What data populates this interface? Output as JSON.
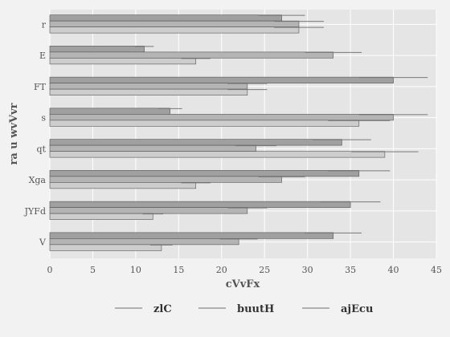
{
  "chart_data": {
    "type": "bar",
    "orientation": "horizontal",
    "xlabel": "cVvFx",
    "ylabel": "ra u wvVvr",
    "xlim": [
      0,
      45
    ],
    "xticks": [
      0,
      5,
      10,
      15,
      20,
      25,
      30,
      35,
      40,
      45
    ],
    "grid": true,
    "legend_position": "bottom",
    "categories": [
      "r",
      "E",
      "FT",
      "s",
      "qt",
      "Xga",
      "JYFd",
      "V"
    ],
    "series": [
      {
        "name": "zlC",
        "color": "#a0a0a0",
        "values": [
          27,
          11,
          40,
          14,
          34,
          36,
          35,
          33
        ],
        "errors": [
          2.7,
          1.1,
          4.0,
          1.4,
          3.4,
          3.6,
          3.5,
          3.3
        ]
      },
      {
        "name": "buutH",
        "color": "#b4b4b4",
        "values": [
          29,
          33,
          23,
          40,
          24,
          27,
          23,
          22
        ],
        "errors": [
          2.9,
          3.3,
          2.3,
          4.0,
          2.4,
          2.7,
          2.3,
          2.2
        ]
      },
      {
        "name": "ajEcu",
        "color": "#cdcdcd",
        "values": [
          29,
          17,
          23,
          36,
          39,
          17,
          12,
          13
        ],
        "errors": [
          2.9,
          1.7,
          2.3,
          3.6,
          3.9,
          1.7,
          1.2,
          1.3
        ]
      }
    ]
  }
}
